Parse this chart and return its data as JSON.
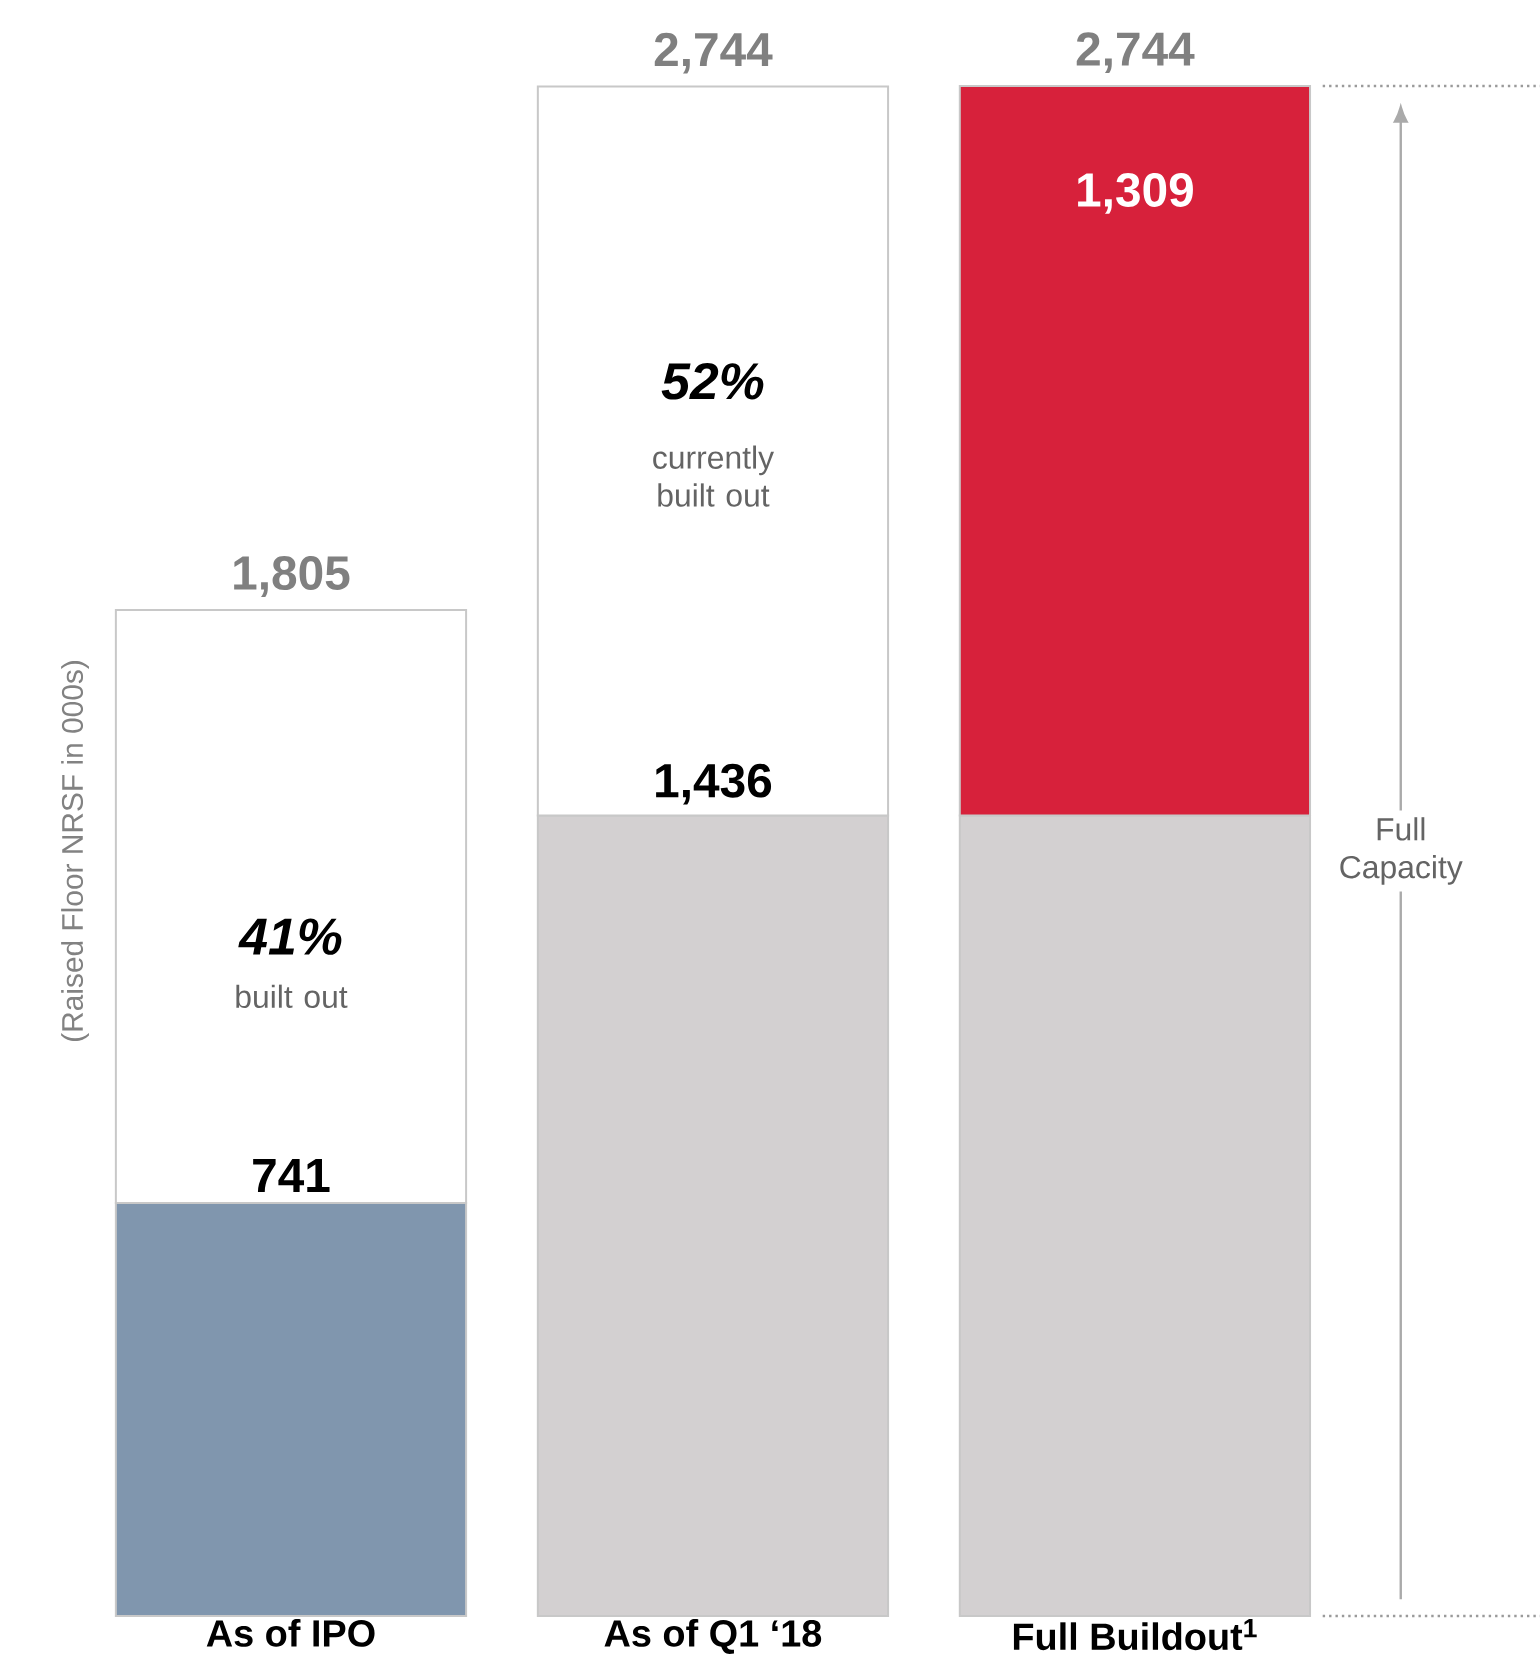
{
  "chart_data": {
    "type": "bar",
    "stacked": true,
    "ylabel": "(Raised Floor NRSF in 000s)",
    "categories": [
      "As of IPO",
      "As of Q1 ‘18",
      "Full Buildout$^{1}$"
    ],
    "series": [
      {
        "colors": [
          "#8096ae",
          "#d3d0d1",
          "#d3d0d1"
        ],
        "values": [
          741,
          1436,
          1436
        ],
        "value_labels": [
          "741",
          "1,436",
          null
        ]
      },
      {
        "colors": [
          "#ffffff",
          "#ffffff",
          "#d7213b"
        ],
        "values": [
          1064,
          1308,
          1309
        ],
        "value_labels": [
          null,
          null,
          "1,309"
        ]
      }
    ],
    "totals": [
      "1,805",
      "2,744",
      "2,744"
    ],
    "annotations": [
      "*41%*",
      "built out",
      "*52%*",
      "currently built out",
      "Full Capacity"
    ]
  }
}
